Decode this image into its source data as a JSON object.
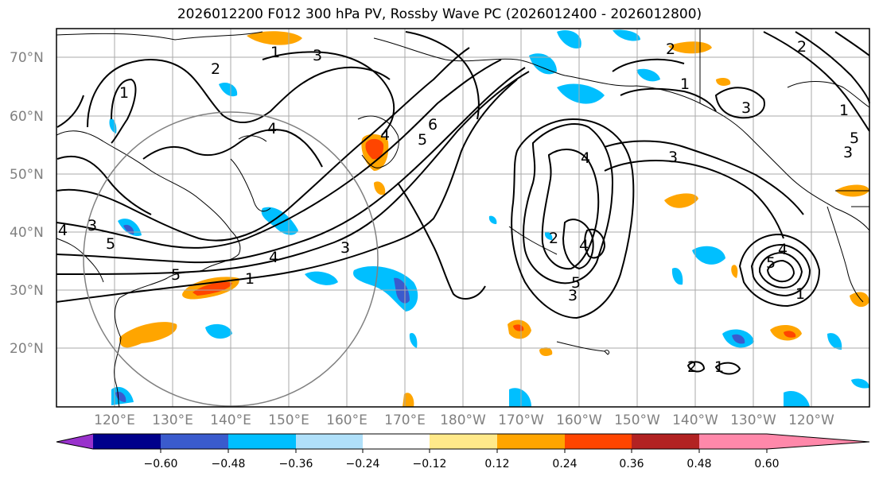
{
  "map": {
    "title": "2026012200 F012 300 hPa PV, Rossby Wave PC (2026012400 - 2026012800)",
    "lat_ticks": [
      "70°N",
      "60°N",
      "50°N",
      "40°N",
      "30°N",
      "20°N"
    ],
    "lon_ticks": [
      "120°E",
      "130°E",
      "140°E",
      "150°E",
      "160°E",
      "170°E",
      "180°W",
      "170°W",
      "160°W",
      "150°W",
      "140°W",
      "130°W",
      "120°W"
    ],
    "contour_labels": [
      "2",
      "1",
      "3",
      "4",
      "4",
      "5",
      "6",
      "1",
      "3",
      "4",
      "3",
      "4",
      "4",
      "3",
      "1",
      "2",
      "5",
      "2",
      "4",
      "5",
      "3",
      "1",
      "2",
      "3",
      "5",
      "4",
      "5",
      "2",
      "1",
      "3",
      "5",
      "1",
      "1"
    ],
    "colorbar": {
      "ticks": [
        "−0.60",
        "−0.48",
        "−0.36",
        "−0.24",
        "−0.12",
        "0.12",
        "0.24",
        "0.36",
        "0.48",
        "0.60"
      ],
      "colors": [
        "#9932cc",
        "#00008b",
        "#3a5bcd",
        "#00bfff",
        "#b0e0fa",
        "#ffffff",
        "#ffe98a",
        "#ffa500",
        "#ff4500",
        "#b22222",
        "#ff88aa"
      ]
    }
  }
}
